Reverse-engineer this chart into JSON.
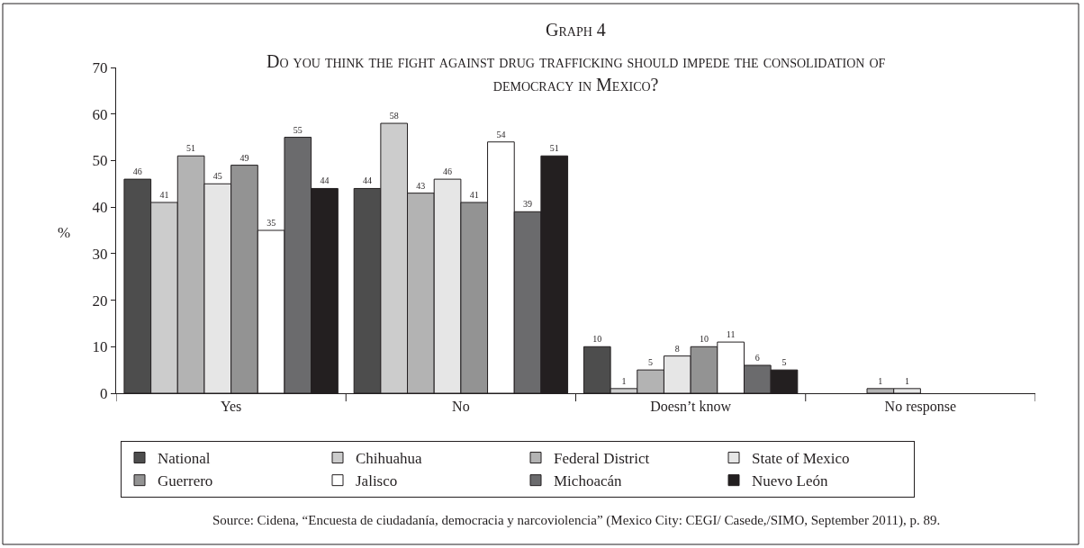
{
  "chart_data": {
    "type": "bar",
    "title": "Graph 4",
    "subtitle": "Do you think the fight against drug trafficking should impede the consolidation of democracy in Mexico?",
    "ylabel": "%",
    "categories": [
      "Yes",
      "No",
      "Doesn’t know",
      "No response"
    ],
    "series": [
      {
        "name": "National",
        "color": "#4d4d4d",
        "values": [
          46,
          44,
          10,
          null
        ]
      },
      {
        "name": "Chihuahua",
        "color": "#cccccc",
        "values": [
          41,
          58,
          1,
          null
        ]
      },
      {
        "name": "Federal District",
        "color": "#b3b3b3",
        "values": [
          51,
          43,
          5,
          1
        ]
      },
      {
        "name": "State of Mexico",
        "color": "#e6e6e6",
        "values": [
          45,
          46,
          8,
          1
        ]
      },
      {
        "name": "Guerrero",
        "color": "#939393",
        "values": [
          49,
          41,
          10,
          null
        ]
      },
      {
        "name": "Jalisco",
        "color": "#ffffff",
        "values": [
          35,
          54,
          11,
          null
        ]
      },
      {
        "name": "Michoacán",
        "color": "#6b6b6d",
        "values": [
          55,
          39,
          6,
          null
        ]
      },
      {
        "name": "Nuevo León",
        "color": "#231f20",
        "values": [
          44,
          51,
          5,
          null
        ]
      }
    ],
    "ylim": [
      0,
      70
    ],
    "yticks": [
      0,
      10,
      20,
      30,
      40,
      50,
      60,
      70
    ],
    "grid": false,
    "legend": "bottom",
    "data_labels": true,
    "annotations": [
      "Source: Cidena, “Encuesta de ciudadanía, democracia y narcoviolencia” (Mexico City: CEGI/ Casede,/SIMO, September 2011), p. 89."
    ]
  }
}
